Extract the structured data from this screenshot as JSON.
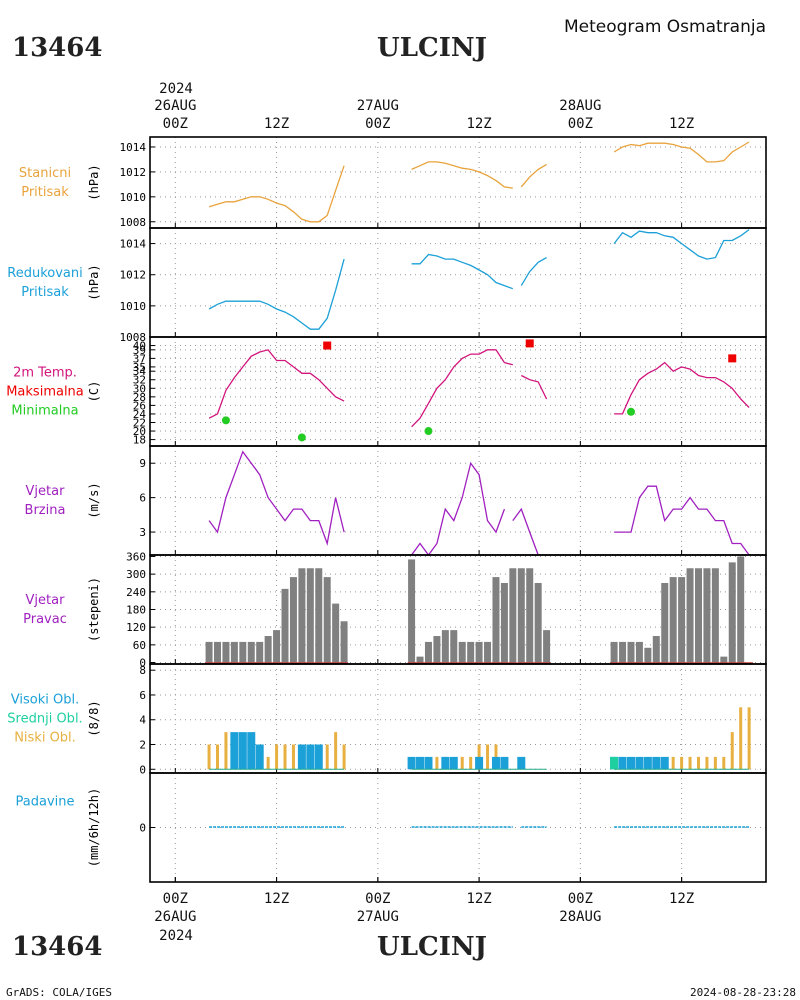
{
  "header": {
    "station_id": "13464",
    "station_name": "ULCINJ",
    "product_title": "Meteogram Osmatranja"
  },
  "footer": {
    "station_id": "13464",
    "station_name": "ULCINJ",
    "credit": "GrADS: COLA/IGES",
    "timestamp": "2024-08-28-23:28"
  },
  "time_axis": {
    "top_year": "2024",
    "bottom_year": "2024",
    "date_labels": [
      {
        "hour": 0,
        "date": "26AUG"
      },
      {
        "hour": 24,
        "date": "27AUG"
      },
      {
        "hour": 48,
        "date": "28AUG"
      }
    ],
    "hour_labels": [
      {
        "hour": 0,
        "label": "00Z"
      },
      {
        "hour": 12,
        "label": "12Z"
      },
      {
        "hour": 24,
        "label": "00Z"
      },
      {
        "hour": 36,
        "label": "12Z"
      },
      {
        "hour": 48,
        "label": "00Z"
      },
      {
        "hour": 60,
        "label": "12Z"
      }
    ],
    "x_range_hours": [
      -3,
      70
    ]
  },
  "colors": {
    "station_pressure": "#e8a33c",
    "reduced_pressure": "#1ba0d8",
    "temp_line": "#d2147d",
    "tmax": "#ee0000",
    "tmin": "#22cc22",
    "wind": "#a020c0",
    "wind_dir_bar": "#808080",
    "wind_dir_zero": "#c84040",
    "cloud_high": "#1ba0d8",
    "cloud_mid": "#1ed0a0",
    "cloud_low": "#e8b040",
    "precip": "#1ba0d8"
  },
  "chart_data": [
    {
      "type": "line",
      "panel_labels": [
        "Stanicni",
        "Pritisak"
      ],
      "ylabel": "(hPa)",
      "ylim": [
        1007.5,
        1014.8
      ],
      "yticks": [
        1008,
        1010,
        1012,
        1014
      ],
      "series": [
        {
          "segments": [
            {
              "x": [
                4,
                5,
                6,
                7,
                8,
                9,
                10,
                11,
                12,
                13,
                14,
                15,
                16,
                17,
                18,
                19,
                20
              ],
              "y": [
                1009.2,
                1009.4,
                1009.6,
                1009.6,
                1009.8,
                1010.0,
                1010.0,
                1009.8,
                1009.5,
                1009.3,
                1008.8,
                1008.2,
                1008.0,
                1008.0,
                1008.5,
                1010.5,
                1012.5
              ]
            },
            {
              "x": [
                28,
                29,
                30,
                31,
                32,
                33,
                34,
                35,
                36,
                37,
                38,
                39,
                40
              ],
              "y": [
                1012.2,
                1012.5,
                1012.8,
                1012.8,
                1012.7,
                1012.5,
                1012.3,
                1012.2,
                1012.0,
                1011.7,
                1011.3,
                1010.8,
                1010.7
              ]
            },
            {
              "x": [
                41,
                42,
                43,
                44
              ],
              "y": [
                1010.8,
                1011.6,
                1012.2,
                1012.6
              ]
            },
            {
              "x": [
                52,
                53,
                54,
                55,
                56,
                57,
                58,
                59,
                60,
                61,
                62,
                63,
                64,
                65,
                66,
                67,
                68
              ],
              "y": [
                1013.6,
                1014.0,
                1014.2,
                1014.1,
                1014.3,
                1014.3,
                1014.3,
                1014.2,
                1014.0,
                1013.9,
                1013.4,
                1012.8,
                1012.8,
                1012.9,
                1013.6,
                1014.0,
                1014.4
              ]
            }
          ]
        }
      ]
    },
    {
      "type": "line",
      "panel_labels": [
        "Redukovani",
        "Pritisak"
      ],
      "ylabel": "(hPa)",
      "ylim": [
        1008,
        1015
      ],
      "yticks": [
        1008,
        1010,
        1012,
        1014
      ],
      "series": [
        {
          "segments": [
            {
              "x": [
                4,
                5,
                6,
                7,
                8,
                9,
                10,
                11,
                12,
                13,
                14,
                15,
                16,
                17,
                18,
                19,
                20
              ],
              "y": [
                1009.8,
                1010.1,
                1010.3,
                1010.3,
                1010.3,
                1010.3,
                1010.3,
                1010.1,
                1009.8,
                1009.6,
                1009.3,
                1008.9,
                1008.5,
                1008.5,
                1009.2,
                1011.0,
                1013.0
              ]
            },
            {
              "x": [
                28,
                29,
                30,
                31,
                32,
                33,
                34,
                35,
                36,
                37,
                38,
                39,
                40
              ],
              "y": [
                1012.7,
                1012.7,
                1013.3,
                1013.2,
                1013.0,
                1013.0,
                1012.8,
                1012.6,
                1012.3,
                1012.0,
                1011.5,
                1011.3,
                1011.1
              ]
            },
            {
              "x": [
                41,
                42,
                43,
                44
              ],
              "y": [
                1011.3,
                1012.2,
                1012.8,
                1013.1
              ]
            },
            {
              "x": [
                52,
                53,
                54,
                55,
                56,
                57,
                58,
                59,
                60,
                61,
                62,
                63,
                64,
                65,
                66,
                67,
                68
              ],
              "y": [
                1014.0,
                1014.7,
                1014.4,
                1014.8,
                1014.7,
                1014.7,
                1014.5,
                1014.4,
                1014.0,
                1013.6,
                1013.2,
                1013.0,
                1013.1,
                1014.2,
                1014.2,
                1014.5,
                1014.9
              ]
            }
          ]
        }
      ]
    },
    {
      "type": "line",
      "panel_labels": [
        "2m Temp.",
        "Maksimalna",
        "Minimalna"
      ],
      "ylabel": "(C)",
      "ylim": [
        16.5,
        42
      ],
      "yticks": [
        18,
        20,
        22,
        24,
        26,
        28,
        30,
        32,
        34,
        35,
        37,
        39,
        40
      ],
      "series": [
        {
          "name": "2m Temp.",
          "segments": [
            {
              "x": [
                4,
                5,
                6,
                7,
                8,
                9,
                10,
                11,
                12,
                13,
                14,
                15,
                16,
                17,
                18,
                19,
                20
              ],
              "y": [
                23.0,
                24.0,
                29.5,
                32.5,
                35.0,
                37.5,
                38.5,
                39.0,
                36.5,
                36.5,
                35.0,
                33.5,
                33.5,
                32.0,
                30.0,
                28.0,
                27.0
              ]
            },
            {
              "x": [
                28,
                29,
                30,
                31,
                32,
                33,
                34,
                35,
                36,
                37,
                38,
                39,
                40
              ],
              "y": [
                21.0,
                23.0,
                26.5,
                30.0,
                32.0,
                35.0,
                37.0,
                38.0,
                38.0,
                39.0,
                39.0,
                36.0,
                35.5
              ]
            },
            {
              "x": [
                41,
                42,
                43,
                44
              ],
              "y": [
                33.0,
                32.0,
                31.5,
                27.5
              ]
            },
            {
              "x": [
                52,
                53,
                54,
                55,
                56,
                57,
                58,
                59,
                60,
                61,
                62,
                63,
                64,
                65,
                66,
                67,
                68
              ],
              "y": [
                24.0,
                24.0,
                28.5,
                32.0,
                33.5,
                34.5,
                36.0,
                34.0,
                35.0,
                34.5,
                33.0,
                32.5,
                32.5,
                31.5,
                30.0,
                27.5,
                25.5
              ]
            }
          ]
        }
      ],
      "maxima": {
        "name": "Maksimalna",
        "x": [
          18,
          42,
          66
        ],
        "y": [
          40,
          40.5,
          37
        ]
      },
      "minima": {
        "name": "Minimalna",
        "x": [
          6,
          15,
          30,
          54
        ],
        "y": [
          22.5,
          18.5,
          20.0,
          24.5
        ]
      }
    },
    {
      "type": "line",
      "panel_labels": [
        "Vjetar",
        "Brzina"
      ],
      "ylabel": "(m/s)",
      "ylim": [
        1,
        10.5
      ],
      "yticks": [
        3,
        6,
        9
      ],
      "series": [
        {
          "segments": [
            {
              "x": [
                4,
                5,
                6,
                7,
                8,
                9,
                10,
                11,
                12,
                13,
                14,
                15,
                16,
                17,
                18,
                19,
                20
              ],
              "y": [
                4,
                3,
                6,
                8,
                10,
                9,
                8,
                6,
                5,
                4,
                5,
                5,
                4,
                4,
                2,
                6,
                3
              ]
            },
            {
              "x": [
                28,
                29,
                30,
                31,
                32,
                33,
                34,
                35,
                36,
                37,
                38,
                39,
                40
              ],
              "y": [
                1,
                2,
                1,
                2,
                5,
                4,
                6,
                9,
                8,
                4,
                3,
                5,
                null
              ]
            },
            {
              "x": [
                40,
                41,
                42,
                43
              ],
              "y": [
                4,
                5,
                3,
                1
              ]
            },
            {
              "x": [
                52,
                53,
                54,
                55,
                56,
                57,
                58,
                59,
                60,
                61,
                62,
                63,
                64,
                65,
                66,
                67,
                68
              ],
              "y": [
                3,
                3,
                3,
                6,
                7,
                7,
                4,
                5,
                5,
                6,
                5,
                5,
                4,
                4,
                2,
                2,
                1
              ]
            }
          ]
        }
      ]
    },
    {
      "type": "bar",
      "panel_labels": [
        "Vjetar",
        "Pravac"
      ],
      "ylabel": "(stepeni)",
      "ylim": [
        -5,
        365
      ],
      "yticks": [
        0,
        60,
        120,
        180,
        240,
        300,
        360
      ],
      "x": [
        4,
        5,
        6,
        7,
        8,
        9,
        10,
        11,
        12,
        13,
        14,
        15,
        16,
        17,
        18,
        19,
        20,
        28,
        29,
        30,
        31,
        32,
        33,
        34,
        35,
        36,
        37,
        38,
        39,
        40,
        41,
        42,
        43,
        44,
        52,
        53,
        54,
        55,
        56,
        57,
        58,
        59,
        60,
        61,
        62,
        63,
        64,
        65,
        66,
        67,
        68
      ],
      "values": [
        70,
        70,
        70,
        70,
        70,
        70,
        70,
        90,
        110,
        250,
        290,
        320,
        320,
        320,
        290,
        200,
        140,
        350,
        20,
        70,
        90,
        110,
        110,
        70,
        70,
        70,
        70,
        290,
        270,
        320,
        320,
        320,
        270,
        110,
        70,
        70,
        70,
        70,
        50,
        90,
        270,
        290,
        290,
        320,
        320,
        320,
        320,
        20,
        340,
        360,
        0
      ]
    },
    {
      "type": "bar",
      "panel_labels": [
        "Visoki Obl.",
        "Srednji Obl.",
        "Niski Obl."
      ],
      "ylabel": "(8/8)",
      "ylim": [
        -0.3,
        8.5
      ],
      "yticks": [
        0,
        2,
        4,
        6,
        8
      ],
      "x": [
        4,
        5,
        6,
        7,
        8,
        9,
        10,
        11,
        12,
        13,
        14,
        15,
        16,
        17,
        18,
        19,
        20,
        28,
        29,
        30,
        31,
        32,
        33,
        34,
        35,
        36,
        37,
        38,
        39,
        40,
        41,
        42,
        43,
        44,
        52,
        53,
        54,
        55,
        56,
        57,
        58,
        59,
        60,
        61,
        62,
        63,
        64,
        65,
        66,
        67,
        68
      ],
      "series": [
        {
          "name": "Visoki Obl.",
          "values": [
            0,
            0,
            0,
            3,
            3,
            3,
            2,
            0,
            0,
            0,
            0,
            2,
            2,
            2,
            0,
            0,
            0,
            1,
            1,
            1,
            0,
            1,
            1,
            0,
            0,
            1,
            0,
            1,
            1,
            0,
            1,
            0,
            0,
            0,
            1,
            1,
            1,
            1,
            1,
            1,
            1,
            0,
            0,
            0,
            0,
            0,
            0,
            0,
            0,
            0,
            0
          ]
        },
        {
          "name": "Srednji Obl.",
          "values": [
            0,
            0,
            0,
            0,
            0,
            0,
            0,
            0,
            0,
            0,
            0,
            0,
            0,
            0,
            0,
            0,
            0,
            0,
            0,
            0,
            0,
            0,
            0,
            0,
            0,
            0,
            0,
            0,
            0,
            0,
            0,
            0,
            0,
            0,
            1,
            0,
            0,
            0,
            0,
            0,
            0,
            0,
            0,
            0,
            0,
            0,
            0,
            0,
            0,
            0,
            0
          ]
        },
        {
          "name": "Niski Obl.",
          "values": [
            2,
            2,
            3,
            1,
            1,
            0,
            0,
            1,
            2,
            2,
            2,
            2,
            2,
            2,
            2,
            3,
            2,
            0,
            0,
            0,
            1,
            1,
            0,
            1,
            1,
            2,
            2,
            2,
            0,
            0,
            0,
            0,
            0,
            0,
            0,
            0,
            0,
            0,
            0,
            0,
            0,
            1,
            1,
            1,
            1,
            1,
            1,
            1,
            3,
            5,
            5
          ]
        }
      ]
    },
    {
      "type": "bar",
      "panel_labels": [
        "Padavine"
      ],
      "ylabel": "(mm/6h/12h)",
      "ylim": [
        -5,
        5
      ],
      "yticks": [
        0
      ],
      "segments_x": [
        [
          4,
          20
        ],
        [
          28,
          40
        ],
        [
          41,
          44
        ],
        [
          52,
          68
        ]
      ],
      "values": [
        0
      ]
    }
  ]
}
